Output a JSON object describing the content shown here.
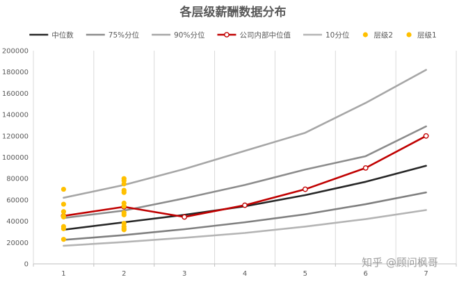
{
  "chart_data": {
    "type": "line",
    "title": "各层级薪酬数据分布",
    "xlabel": "",
    "ylabel": "",
    "categories": [
      "1",
      "2",
      "3",
      "4",
      "5",
      "6",
      "7"
    ],
    "ylim": [
      0,
      200000
    ],
    "yticks": [
      "0",
      "20000",
      "40000",
      "60000",
      "80000",
      "100000",
      "120000",
      "140000",
      "160000",
      "180000",
      "200000"
    ],
    "grid": "vertical",
    "legend_position": "top",
    "series": [
      {
        "name": "中位数",
        "kind": "line",
        "color": "#262626",
        "width": 2.6,
        "values": [
          32000,
          39000,
          46000,
          54000,
          64500,
          77000,
          92000
        ]
      },
      {
        "name": "75%分位",
        "kind": "line",
        "color": "#8c8c8c",
        "width": 2.6,
        "values": [
          43000,
          50000,
          61500,
          74000,
          88500,
          101000,
          129000
        ]
      },
      {
        "name": "90%分位",
        "kind": "line",
        "color": "#a6a6a6",
        "width": 2.6,
        "values": [
          62000,
          74000,
          89000,
          106000,
          123000,
          151000,
          182000
        ]
      },
      {
        "name": "公司内部中位值",
        "kind": "line-marker",
        "color": "#c00000",
        "width": 2.6,
        "values": [
          45000,
          53500,
          44000,
          55000,
          70000,
          90000,
          120000
        ]
      },
      {
        "name": "10分位",
        "kind": "line",
        "color": "#b4b4b4",
        "width": 2.6,
        "values": [
          17000,
          20500,
          24500,
          29000,
          35000,
          42000,
          50500
        ]
      },
      {
        "name": "",
        "kind": "line",
        "color": "#7f7f7f",
        "width": 2.6,
        "values": [
          22500,
          27000,
          32500,
          39000,
          46500,
          56000,
          67000
        ]
      },
      {
        "name": "层级2",
        "kind": "scatter",
        "color": "#ffc000",
        "points": [
          [
            2,
            80000
          ],
          [
            2,
            78000
          ],
          [
            2,
            75000
          ],
          [
            2,
            69000
          ],
          [
            2,
            67000
          ],
          [
            2,
            57000
          ],
          [
            2,
            54000
          ],
          [
            2,
            48000
          ],
          [
            2,
            46000
          ],
          [
            2,
            38000
          ],
          [
            2,
            35000
          ],
          [
            2,
            33000
          ],
          [
            2,
            32000
          ]
        ]
      },
      {
        "name": "层级1",
        "kind": "scatter",
        "color": "#ffc000",
        "points": [
          [
            1,
            70000
          ],
          [
            1,
            56000
          ],
          [
            1,
            49000
          ],
          [
            1,
            45000
          ],
          [
            1,
            44000
          ],
          [
            1,
            35000
          ],
          [
            1,
            33000
          ],
          [
            1,
            23000
          ]
        ]
      }
    ]
  },
  "watermark": "知乎 @顾问枫哥"
}
